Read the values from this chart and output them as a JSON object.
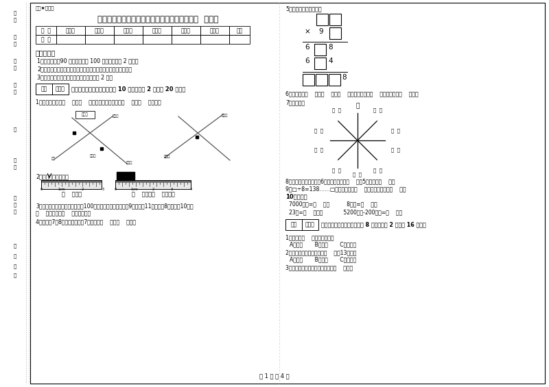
{
  "title": "河南省实验小学三年级数学上学期每周一练试题  附答案",
  "watermark": "题圈★自用圈",
  "bg_color": "#ffffff",
  "table_headers": [
    "题  号",
    "填空题",
    "选择题",
    "判断题",
    "计算题",
    "综合题",
    "应用题",
    "总分"
  ],
  "section1_title": "考试须知：",
  "section1_items": [
    "1、考试时间：90 分钟，满分为 100 分（含卷面分 2 分）。",
    "2、请首先按要求在试卷的指定位置填写您的姓名、班级、学号。",
    "3、不要在试卷上乱写乱画，卷面不整洁扣 2 分。"
  ],
  "section2_title": "一、用心思考，正确填空（共 10 小题，每题 2 分，共 20 分）。",
  "q1": "1、小红家在学校（    ）方（    ）米处；小明家在学校（    ）方（    ）米处。",
  "q2": "2、量出钉子的长度。",
  "q2_ruler1": "（    ）毫米",
  "q2_ruler2": "（    ）厘米（    ）毫米。",
  "q3": "3、体育老师对第一小组同学进行100米跑测试，成绩如下小红9秒，小圆11秒，小明8秒，小军10秒。",
  "q3b": "（    ）跑得最快（    ）跑得最慢。",
  "q4": "4、时针在7和8之间，分针指向7，这时是（    ）时（    ）分。",
  "q5_title": "5、在里填上适当的数。",
  "q6": "6、你出生于（    ）年（    ）月（    ）日，那一年是（    ）年，全年有（    ）天。",
  "q7": "7、填一填。",
  "q8": "8、把一根绳子平均分成6份，每份是它的（    ），5份是它的（    ）。",
  "q9": "9、□÷8=138……□，余数最大填（    ），这时被除数是（    ）。",
  "q10": "10、换算。",
  "q10_items": [
    "7000千克=（    ）吨          8千克=（    ）克",
    "23吨=（    ）千克            5200千克-200千克=（    ）吨"
  ],
  "section3_title": "二、反复比较，慎重选择（共 8 小题，每题 2 分，共 16 分）。",
  "q_sel1": "1、四边形（    ）平行四边形。",
  "q_sel1_opts": "A、一定       B、可能       C、不可能",
  "q_sel2": "2、按农历计算，有的年份（    ）有13个月。",
  "q_sel2_opts": "A、一定       B、可能       C、不可能",
  "q_sel3": "3、最大的三位数是最大一位数的（    ）倍。",
  "page_footer": "第 1 页 共 4 页",
  "left_labels_top": [
    "审\n条",
    "班\n级",
    "姓\n名",
    "学\n号"
  ],
  "left_labels_mid": [
    "内"
  ],
  "left_labels_bot": [
    "学\n校",
    "装\n订\n线",
    "（\n撕\n毁\n）"
  ]
}
